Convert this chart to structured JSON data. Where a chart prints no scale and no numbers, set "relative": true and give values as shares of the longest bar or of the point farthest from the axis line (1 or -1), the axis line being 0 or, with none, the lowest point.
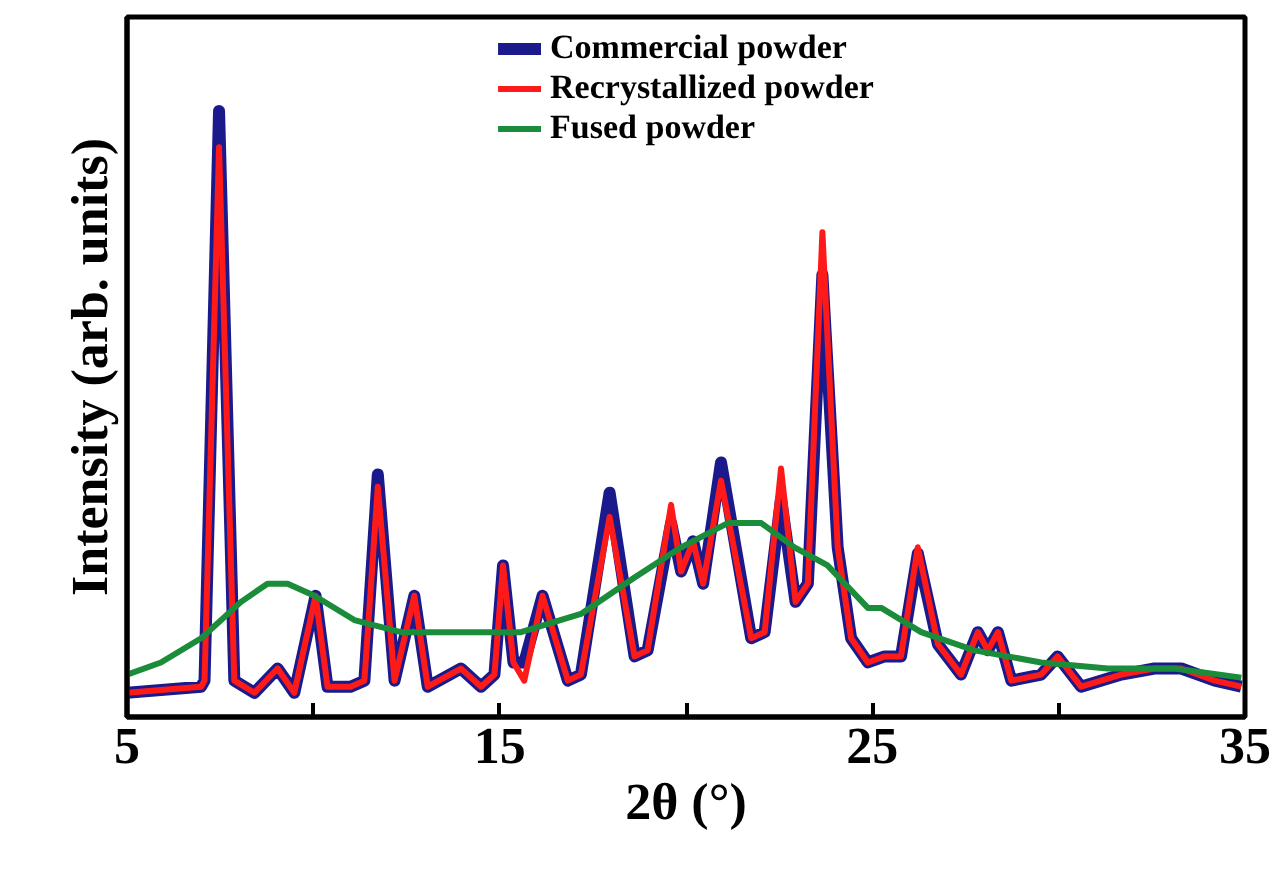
{
  "chart_data": {
    "type": "line",
    "relative": true,
    "xlabel": "2θ (°)",
    "ylabel": "Intensity (arb. units)",
    "xlim": [
      5,
      35
    ],
    "xticks": [
      5,
      {
        "value": 10,
        "label": null
      },
      15,
      {
        "value": 20,
        "label": null
      },
      25,
      {
        "value": 30,
        "label": null
      },
      35
    ],
    "legend": "top",
    "grid": false,
    "line_style": "solid",
    "marker": "none",
    "series": [
      {
        "name": "Commercial powder",
        "color": "#1a1a8c",
        "x": [
          5,
          6.99,
          7.08,
          7.47,
          7.88,
          8.42,
          9.04,
          9.49,
          10.06,
          10.38,
          11.0,
          11.37,
          11.73,
          12.18,
          12.71,
          13.07,
          13.96,
          14.5,
          14.86,
          15.09,
          15.37,
          15.66,
          16.15,
          16.83,
          17.18,
          17.95,
          18.62,
          18.97,
          19.6,
          19.87,
          20.19,
          20.46,
          20.94,
          21.75,
          22.11,
          22.55,
          22.94,
          23.27,
          23.66,
          24.07,
          24.43,
          24.88,
          25.33,
          25.77,
          26.22,
          26.76,
          27.38,
          27.83,
          28.1,
          28.37,
          28.73,
          29.53,
          29.97,
          30.6,
          31.68,
          32.57,
          33.29,
          34.19,
          34.9
        ],
        "values": [
          0.04,
          0.05,
          0.06,
          1.0,
          0.06,
          0.04,
          0.08,
          0.04,
          0.2,
          0.05,
          0.05,
          0.06,
          0.4,
          0.06,
          0.2,
          0.05,
          0.08,
          0.05,
          0.07,
          0.25,
          0.09,
          0.09,
          0.2,
          0.06,
          0.07,
          0.37,
          0.1,
          0.11,
          0.32,
          0.24,
          0.29,
          0.22,
          0.42,
          0.13,
          0.14,
          0.36,
          0.19,
          0.22,
          0.73,
          0.28,
          0.13,
          0.09,
          0.1,
          0.1,
          0.27,
          0.12,
          0.07,
          0.14,
          0.11,
          0.14,
          0.06,
          0.07,
          0.1,
          0.05,
          0.07,
          0.08,
          0.08,
          0.06,
          0.05
        ]
      },
      {
        "name": "Recrystallized powder",
        "color": "#ff1a1a",
        "x": [
          5,
          6.99,
          7.08,
          7.47,
          7.88,
          8.42,
          9.04,
          9.49,
          10.06,
          10.38,
          11.0,
          11.37,
          11.73,
          12.18,
          12.71,
          13.07,
          13.96,
          14.5,
          14.86,
          15.09,
          15.37,
          15.66,
          16.15,
          16.83,
          17.18,
          17.95,
          18.62,
          18.97,
          19.6,
          19.87,
          20.19,
          20.46,
          20.94,
          21.75,
          22.11,
          22.55,
          22.94,
          23.27,
          23.66,
          24.07,
          24.43,
          24.88,
          25.33,
          25.77,
          26.22,
          26.76,
          27.38,
          27.83,
          28.1,
          28.37,
          28.73,
          29.53,
          29.97,
          30.6,
          31.68,
          32.57,
          33.29,
          34.19,
          34.9
        ],
        "values": [
          0.04,
          0.05,
          0.06,
          0.94,
          0.06,
          0.04,
          0.08,
          0.04,
          0.2,
          0.05,
          0.05,
          0.06,
          0.38,
          0.06,
          0.2,
          0.05,
          0.08,
          0.05,
          0.07,
          0.25,
          0.09,
          0.06,
          0.2,
          0.06,
          0.07,
          0.33,
          0.1,
          0.11,
          0.35,
          0.24,
          0.29,
          0.22,
          0.39,
          0.13,
          0.14,
          0.41,
          0.19,
          0.22,
          0.8,
          0.28,
          0.13,
          0.09,
          0.1,
          0.1,
          0.28,
          0.12,
          0.07,
          0.14,
          0.11,
          0.14,
          0.06,
          0.07,
          0.1,
          0.05,
          0.07,
          0.08,
          0.08,
          0.06,
          0.05
        ]
      },
      {
        "name": "Fused powder",
        "color": "#1a8c3a",
        "x": [
          5,
          5.91,
          6.99,
          8.06,
          8.77,
          9.31,
          10.03,
          11.1,
          12.35,
          13.79,
          15.21,
          15.57,
          17.18,
          18.62,
          19.87,
          21.12,
          22.02,
          22.91,
          23.8,
          24.88,
          25.24,
          26.31,
          27.74,
          29.53,
          31.32,
          33.11,
          34.9
        ],
        "values": [
          0.07,
          0.09,
          0.13,
          0.19,
          0.22,
          0.22,
          0.2,
          0.16,
          0.14,
          0.14,
          0.14,
          0.14,
          0.17,
          0.23,
          0.28,
          0.32,
          0.32,
          0.28,
          0.25,
          0.18,
          0.18,
          0.14,
          0.11,
          0.09,
          0.08,
          0.08,
          0.065
        ]
      }
    ]
  }
}
